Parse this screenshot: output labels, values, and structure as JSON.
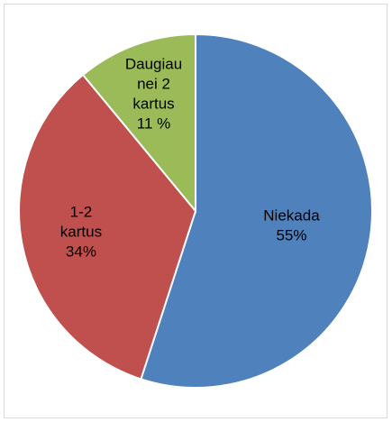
{
  "chart_data": {
    "type": "pie",
    "title": "",
    "slices": [
      {
        "name": "Niekada",
        "value": 55,
        "label_lines": [
          "Niekada",
          "55%"
        ],
        "color": "#4F81BD"
      },
      {
        "name": "1-2 kartus",
        "value": 34,
        "label_lines": [
          "1-2",
          "kartus",
          "34%"
        ],
        "color": "#C0504D"
      },
      {
        "name": "Daugiau nei 2 kartus",
        "value": 11,
        "label_lines": [
          "Daugiau",
          "nei 2",
          "kartus",
          "11 %"
        ],
        "color": "#9BBB59"
      }
    ],
    "start_angle_deg": 0,
    "direction": "clockwise",
    "legend": "none",
    "slice_border_color": "#ffffff"
  }
}
